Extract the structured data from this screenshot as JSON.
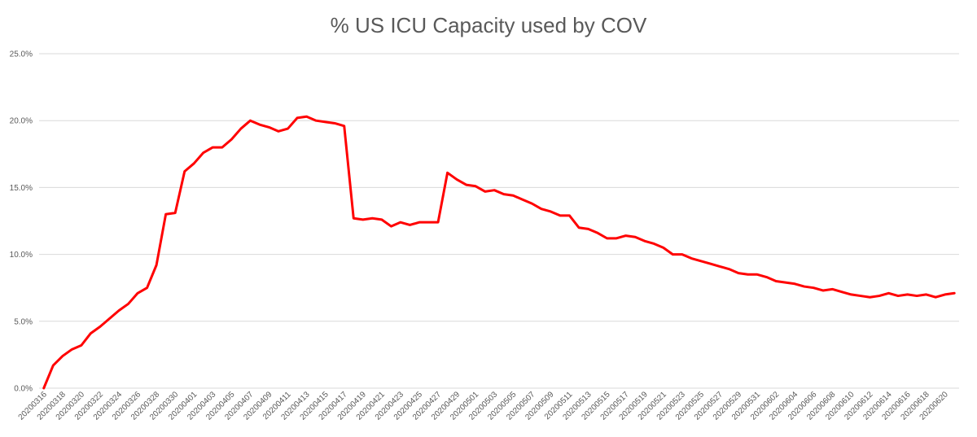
{
  "chart_data": {
    "type": "line",
    "title": "% US ICU Capacity used by COV",
    "xlabel": "",
    "ylabel": "",
    "ylim": [
      0,
      25
    ],
    "y_ticks": [
      0,
      5,
      10,
      15,
      20,
      25
    ],
    "y_tick_labels": [
      "0.0%",
      "5.0%",
      "10.0%",
      "15.0%",
      "20.0%",
      "25.0%"
    ],
    "grid": true,
    "legend": "none",
    "line_color": "#ff0000",
    "x": [
      "20200316",
      "20200317",
      "20200318",
      "20200319",
      "20200320",
      "20200321",
      "20200322",
      "20200323",
      "20200324",
      "20200325",
      "20200326",
      "20200327",
      "20200328",
      "20200329",
      "20200330",
      "20200331",
      "20200401",
      "20200402",
      "20200403",
      "20200404",
      "20200405",
      "20200406",
      "20200407",
      "20200408",
      "20200409",
      "20200410",
      "20200411",
      "20200412",
      "20200413",
      "20200414",
      "20200415",
      "20200416",
      "20200417",
      "20200418",
      "20200419",
      "20200420",
      "20200421",
      "20200422",
      "20200423",
      "20200424",
      "20200425",
      "20200426",
      "20200427",
      "20200428",
      "20200429",
      "20200430",
      "20200501",
      "20200502",
      "20200503",
      "20200504",
      "20200505",
      "20200506",
      "20200507",
      "20200508",
      "20200509",
      "20200510",
      "20200511",
      "20200512",
      "20200513",
      "20200514",
      "20200515",
      "20200516",
      "20200517",
      "20200518",
      "20200519",
      "20200520",
      "20200521",
      "20200522",
      "20200523",
      "20200524",
      "20200525",
      "20200526",
      "20200527",
      "20200528",
      "20200529",
      "20200530",
      "20200531",
      "20200601",
      "20200602",
      "20200603",
      "20200604",
      "20200605",
      "20200606",
      "20200607",
      "20200608",
      "20200609",
      "20200610",
      "20200611",
      "20200612",
      "20200613",
      "20200614",
      "20200615",
      "20200616",
      "20200617",
      "20200618",
      "20200619",
      "20200620",
      "20200621"
    ],
    "x_tick_labels": [
      "20200316",
      "20200318",
      "20200320",
      "20200322",
      "20200324",
      "20200326",
      "20200328",
      "20200330",
      "20200401",
      "20200403",
      "20200405",
      "20200407",
      "20200409",
      "20200411",
      "20200413",
      "20200415",
      "20200417",
      "20200419",
      "20200421",
      "20200423",
      "20200425",
      "20200427",
      "20200429",
      "20200501",
      "20200503",
      "20200505",
      "20200507",
      "20200509",
      "20200511",
      "20200513",
      "20200515",
      "20200517",
      "20200519",
      "20200521",
      "20200523",
      "20200525",
      "20200527",
      "20200529",
      "20200531",
      "20200602",
      "20200604",
      "20200606",
      "20200608",
      "20200610",
      "20200612",
      "20200614",
      "20200616",
      "20200618",
      "20200620"
    ],
    "series": [
      {
        "values": [
          0.0,
          1.7,
          2.4,
          2.9,
          3.2,
          4.1,
          4.6,
          5.2,
          5.8,
          6.3,
          7.1,
          7.5,
          9.2,
          13.0,
          13.1,
          16.2,
          16.8,
          17.6,
          18.0,
          18.0,
          18.6,
          19.4,
          20.0,
          19.7,
          19.5,
          19.2,
          19.4,
          20.2,
          20.3,
          20.0,
          19.9,
          19.8,
          19.6,
          12.7,
          12.6,
          12.7,
          12.6,
          12.1,
          12.4,
          12.2,
          12.4,
          12.4,
          12.4,
          16.1,
          15.6,
          15.2,
          15.1,
          14.7,
          14.8,
          14.5,
          14.4,
          14.1,
          13.8,
          13.4,
          13.2,
          12.9,
          12.9,
          12.0,
          11.9,
          11.6,
          11.2,
          11.2,
          11.4,
          11.3,
          11.0,
          10.8,
          10.5,
          10.0,
          10.0,
          9.7,
          9.5,
          9.3,
          9.1,
          8.9,
          8.6,
          8.5,
          8.5,
          8.3,
          8.0,
          7.9,
          7.8,
          7.6,
          7.5,
          7.3,
          7.4,
          7.2,
          7.0,
          6.9,
          6.8,
          6.9,
          7.1,
          6.9,
          7.0,
          6.9,
          7.0,
          6.8,
          7.0,
          7.1
        ]
      }
    ]
  }
}
